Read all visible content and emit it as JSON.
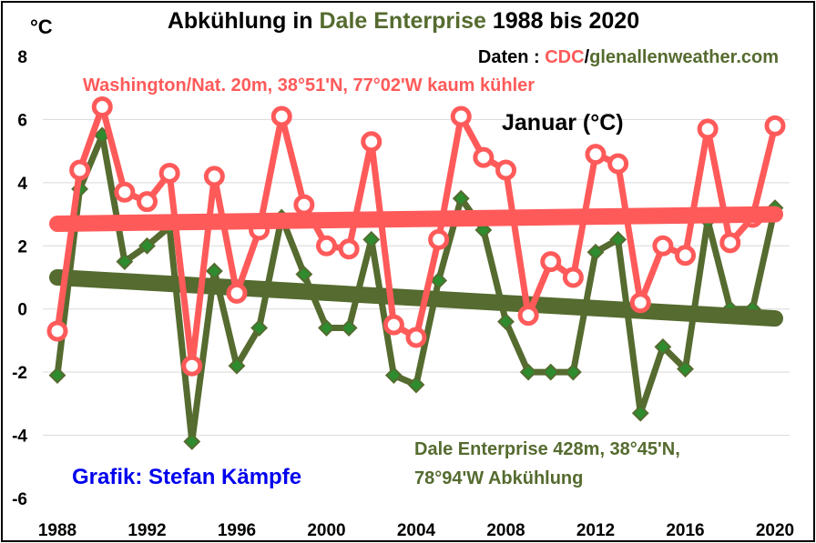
{
  "chart_data": {
    "type": "line",
    "title_parts": [
      {
        "text": "Abkühlung in ",
        "color": "#000000"
      },
      {
        "text": "Dale Enterprise",
        "color": "#556b2f"
      },
      {
        "text": " 1988 bis 2020",
        "color": "#000000"
      }
    ],
    "ylabel": "°C",
    "ylim": [
      -6,
      8
    ],
    "yticks": [
      -6,
      -4,
      -2,
      0,
      2,
      4,
      6,
      8
    ],
    "xlim": [
      1988,
      2020
    ],
    "xticks": [
      1988,
      1992,
      1996,
      2000,
      2004,
      2008,
      2012,
      2016,
      2020
    ],
    "grid": "horizontal",
    "series": [
      {
        "name": "Washington/Nat. 20m, 38°51'N, 77°02'W kaum kühler",
        "color": "#ff5a5a",
        "marker": "circle",
        "x": [
          1988,
          1989,
          1990,
          1991,
          1992,
          1993,
          1994,
          1995,
          1996,
          1997,
          1998,
          1999,
          2000,
          2001,
          2002,
          2003,
          2004,
          2005,
          2006,
          2007,
          2008,
          2009,
          2010,
          2011,
          2012,
          2013,
          2014,
          2015,
          2016,
          2017,
          2018,
          2019,
          2020
        ],
        "values": [
          -0.7,
          4.4,
          6.4,
          3.7,
          3.4,
          4.3,
          -1.8,
          4.2,
          0.5,
          2.5,
          6.1,
          3.3,
          2.0,
          1.9,
          5.3,
          -0.5,
          -0.9,
          2.2,
          6.1,
          4.8,
          4.4,
          -0.2,
          1.5,
          1.0,
          4.9,
          4.6,
          0.2,
          2.0,
          1.7,
          5.7,
          2.1,
          2.9,
          5.8
        ],
        "trend": [
          2.7,
          3.0
        ]
      },
      {
        "name": "Dale Enterprise 428m, 38°45'N, 78°94'W Abkühlung",
        "color": "#556b2f",
        "marker": "diamond",
        "x": [
          1988,
          1989,
          1990,
          1991,
          1992,
          1993,
          1994,
          1995,
          1996,
          1997,
          1998,
          1999,
          2000,
          2001,
          2002,
          2003,
          2004,
          2005,
          2006,
          2007,
          2008,
          2009,
          2010,
          2011,
          2012,
          2013,
          2014,
          2015,
          2016,
          2017,
          2018,
          2019,
          2020
        ],
        "values": [
          -2.1,
          3.8,
          5.5,
          1.5,
          2.0,
          2.6,
          -4.2,
          1.2,
          -1.8,
          -0.6,
          2.9,
          1.1,
          -0.6,
          -0.6,
          2.2,
          -2.1,
          -2.4,
          0.9,
          3.5,
          2.5,
          -0.4,
          -2.0,
          -2.0,
          -2.0,
          1.8,
          2.2,
          -3.3,
          -1.2,
          -1.9,
          2.8,
          0.0,
          0.0,
          3.2
        ],
        "trend": [
          1.0,
          -0.3
        ]
      }
    ],
    "annotations": {
      "source_prefix": "Daten : ",
      "source_cdc": "CDC",
      "source_slash": "/",
      "source_site": "glenallenweather.com",
      "washington": "Washington/Nat. 20m, 38°51'N, 77°02'W kaum kühler",
      "month": "Januar (°C)",
      "dale_line1": "Dale Enterprise 428m, 38°45'N,",
      "dale_line2": "78°94'W  Abkühlung",
      "credit": "Grafik: Stefan Kämpfe"
    },
    "colors": {
      "washington": "#ff5a5a",
      "dale": "#556b2f",
      "dale_marker_fill": "#2e8b2e",
      "credit": "#0000ee",
      "grid": "#d9d9d9"
    }
  }
}
